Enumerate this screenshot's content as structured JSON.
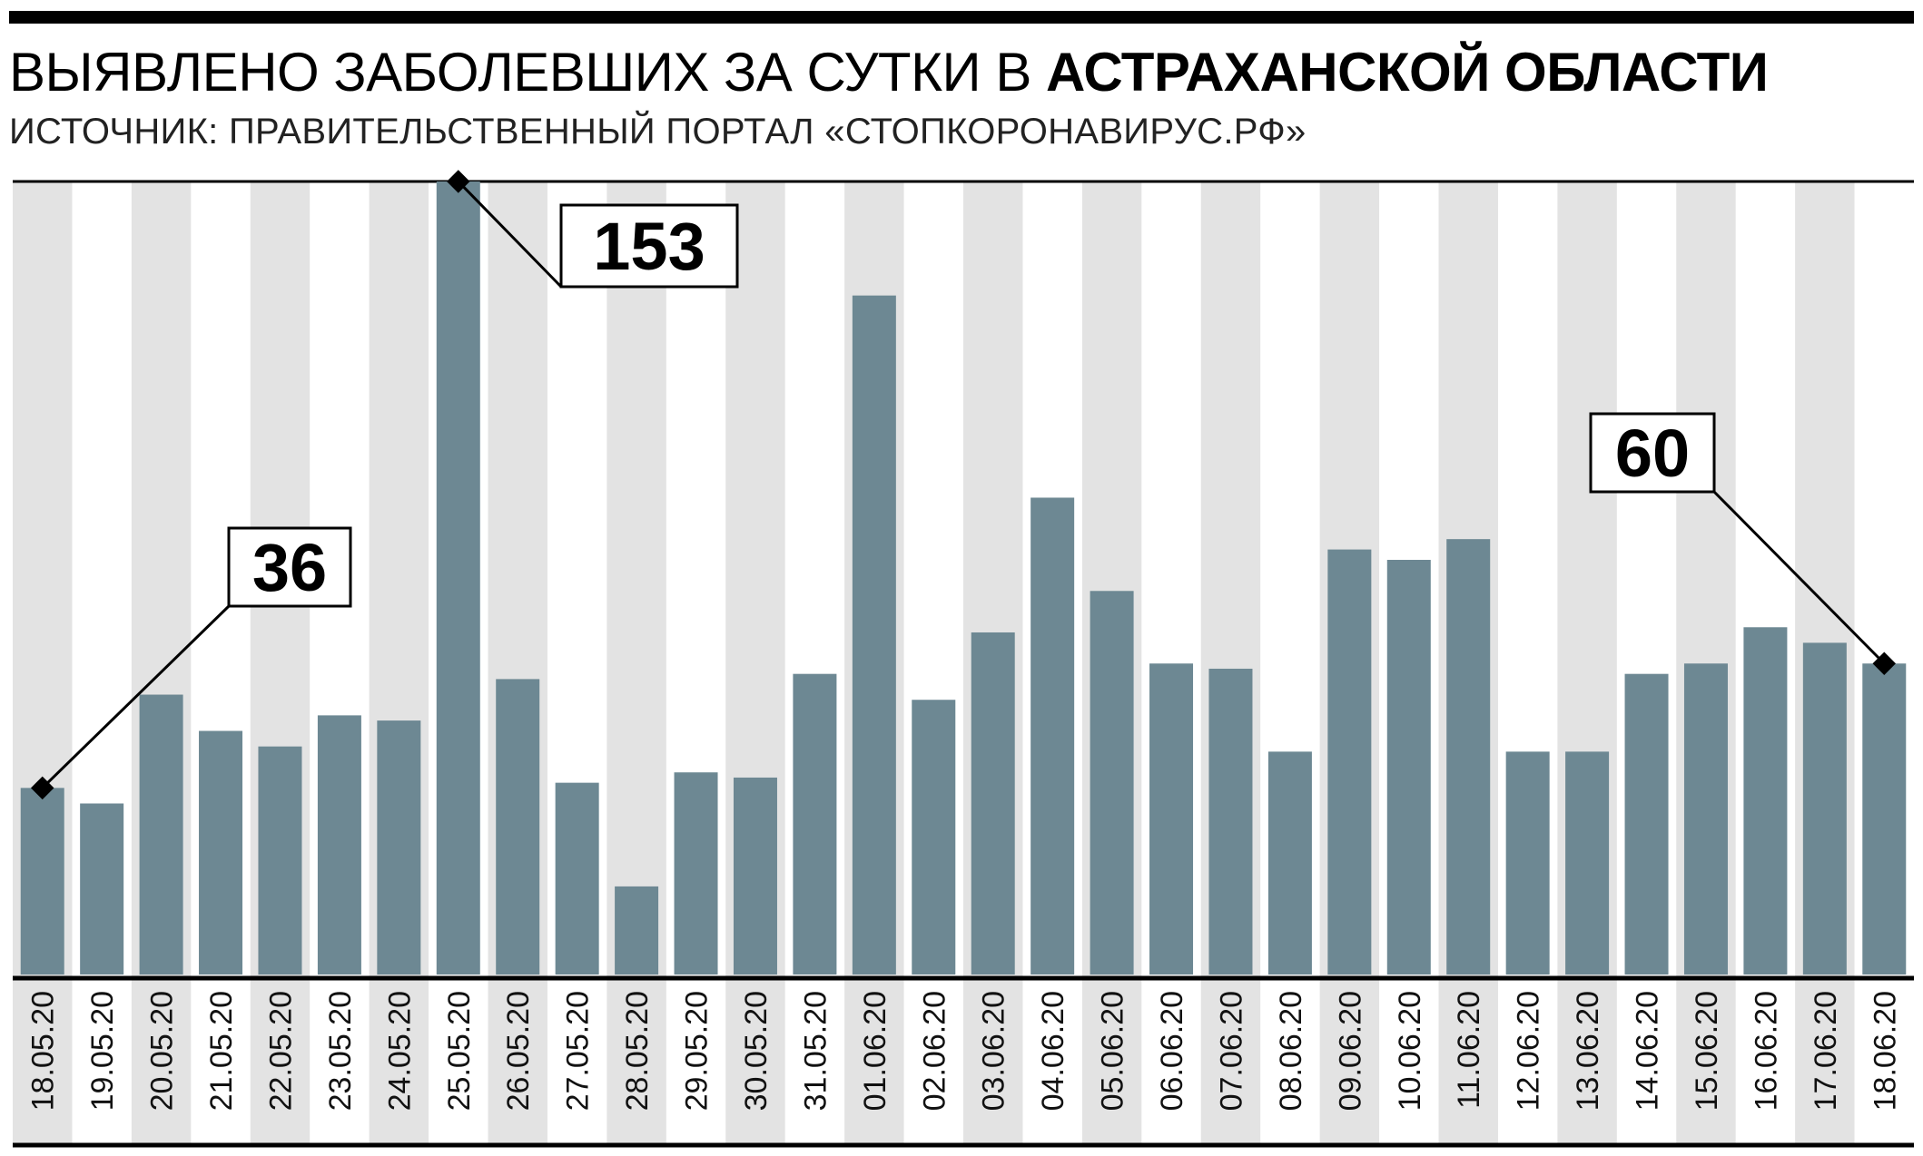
{
  "header": {
    "title_regular": "ВЫЯВЛЕНО ЗАБОЛЕВШИХ ЗА СУТКИ В ",
    "title_bold": "АСТРАХАНСКОЙ ОБЛАСТИ",
    "subtitle": "ИСТОЧНИК: ПРАВИТЕЛЬСТВЕННЫЙ ПОРТАЛ «СТОПКОРОНАВИРУС.РФ»"
  },
  "colors": {
    "bar": "#6d8893",
    "stripe": "#e3e3e3",
    "axis": "#000000"
  },
  "chart_data": {
    "type": "bar",
    "title": "ВЫЯВЛЕНО ЗАБОЛЕВШИХ ЗА СУТКИ В АСТРАХАНСКОЙ ОБЛАСТИ",
    "xlabel": "",
    "ylabel": "",
    "grid": false,
    "alternating_column_stripes": true,
    "ylim": [
      0,
      153
    ],
    "categories": [
      "18.05.20",
      "19.05.20",
      "20.05.20",
      "21.05.20",
      "22.05.20",
      "23.05.20",
      "24.05.20",
      "25.05.20",
      "26.05.20",
      "27.05.20",
      "28.05.20",
      "29.05.20",
      "30.05.20",
      "31.05.20",
      "01.06.20",
      "02.06.20",
      "03.06.20",
      "04.06.20",
      "05.06.20",
      "06.06.20",
      "07.06.20",
      "08.06.20",
      "09.06.20",
      "10.06.20",
      "11.06.20",
      "12.06.20",
      "13.06.20",
      "14.06.20",
      "15.06.20",
      "16.06.20",
      "17.06.20",
      "18.06.20"
    ],
    "values": [
      36,
      33,
      54,
      47,
      44,
      50,
      49,
      153,
      57,
      37,
      17,
      39,
      38,
      58,
      131,
      53,
      66,
      92,
      74,
      60,
      59,
      43,
      82,
      80,
      84,
      43,
      43,
      58,
      60,
      67,
      64,
      60
    ],
    "annotations": [
      {
        "category": "18.05.20",
        "label": "36"
      },
      {
        "category": "25.05.20",
        "label": "153"
      },
      {
        "category": "18.06.20",
        "label": "60"
      }
    ]
  }
}
